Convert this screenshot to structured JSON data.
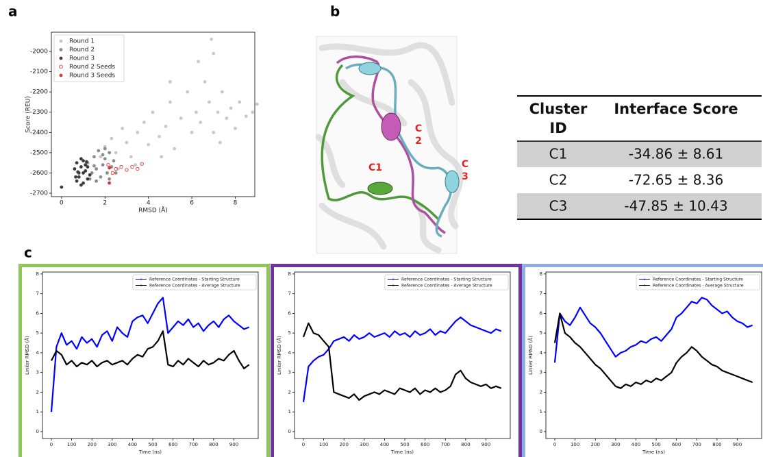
{
  "panel_labels": [
    "a",
    "b",
    "c"
  ],
  "chart_data": [
    {
      "type": "scatter",
      "xlabel": "RMSD (Å)",
      "ylabel": "Score (REU)",
      "xlim": [
        -0.47,
        8.9
      ],
      "ylim": [
        -2717,
        -1905
      ],
      "xticks": [
        0,
        2,
        4,
        6,
        8
      ],
      "yticks": [
        -2700,
        -2600,
        -2500,
        -2400,
        -2300,
        -2200,
        -2100,
        -2000
      ],
      "legend": "upper left",
      "series": [
        {
          "name": "Round 1",
          "color": "#c8c8c8",
          "marker": "filled",
          "x": [
            2.0,
            2.3,
            2.5,
            2.8,
            3.0,
            3.2,
            3.5,
            3.8,
            4.0,
            4.2,
            4.5,
            4.8,
            5.0,
            5.2,
            5.5,
            5.8,
            6.0,
            6.2,
            6.4,
            6.6,
            6.8,
            7.0,
            7.2,
            7.4,
            7.6,
            7.8,
            8.0,
            8.2,
            8.5,
            8.8,
            9.0,
            6.9,
            7.0,
            4.6,
            3.4,
            2.6,
            7.3,
            5.0,
            6.3,
            1.8
          ],
          "values": [
            -2470,
            -2430,
            -2500,
            -2380,
            -2450,
            -2520,
            -2400,
            -2350,
            -2460,
            -2300,
            -2420,
            -2370,
            -2250,
            -2480,
            -2330,
            -2200,
            -2400,
            -2300,
            -2350,
            -2150,
            -2250,
            -2400,
            -2300,
            -2200,
            -2330,
            -2280,
            -2380,
            -2250,
            -2320,
            -2300,
            -2260,
            -1940,
            -2010,
            -2520,
            -2560,
            -2580,
            -2450,
            -2150,
            -2050,
            -2520
          ]
        },
        {
          "name": "Round 2",
          "color": "#8c8c8c",
          "marker": "filled",
          "x": [
            1.2,
            1.4,
            1.5,
            1.6,
            1.7,
            1.8,
            1.9,
            2.0,
            2.1,
            2.2,
            2.3,
            1.3,
            2.4,
            1.6,
            2.0,
            1.1,
            2.5,
            1.9,
            1.5,
            2.2
          ],
          "values": [
            -2550,
            -2600,
            -2520,
            -2580,
            -2490,
            -2620,
            -2560,
            -2530,
            -2600,
            -2500,
            -2570,
            -2630,
            -2540,
            -2640,
            -2480,
            -2590,
            -2600,
            -2510,
            -2565,
            -2630
          ]
        },
        {
          "name": "Round 3",
          "color": "#3c3c3c",
          "marker": "filled",
          "x": [
            0.6,
            0.7,
            0.8,
            0.9,
            1.0,
            1.1,
            1.2,
            0.7,
            0.9,
            1.0,
            1.1,
            1.3,
            0.8,
            1.2,
            0.65,
            1.0,
            0.9,
            0.0,
            1.15,
            0.75
          ],
          "values": [
            -2580,
            -2550,
            -2620,
            -2570,
            -2600,
            -2560,
            -2630,
            -2640,
            -2530,
            -2650,
            -2590,
            -2610,
            -2600,
            -2570,
            -2620,
            -2540,
            -2660,
            -2670,
            -2545,
            -2595
          ]
        },
        {
          "name": "Round 2 Seeds",
          "color": "#e03030",
          "marker": "hollow",
          "x": [
            2.15,
            2.5,
            2.75,
            3.0,
            3.25,
            3.5,
            3.7,
            2.35
          ],
          "values": [
            -2560,
            -2580,
            -2570,
            -2585,
            -2570,
            -2580,
            -2555,
            -2600
          ]
        },
        {
          "name": "Round 3 Seeds",
          "color": "#e03030",
          "marker": "filled",
          "x": [
            2.2,
            2.2
          ],
          "values": [
            -2575,
            -2650
          ]
        }
      ]
    },
    {
      "type": "line",
      "frame_color": "#8dc75a",
      "xlabel": "Time (ns)",
      "ylabel": "Linker RMSD (Å)",
      "xlim": [
        -44,
        1020
      ],
      "ylim": [
        -0.35,
        8.1
      ],
      "xticks": [
        0,
        100,
        200,
        300,
        400,
        500,
        600,
        700,
        800,
        900
      ],
      "yticks": [
        0,
        1,
        2,
        3,
        4,
        5,
        6,
        7,
        8
      ],
      "legend": "upper right",
      "x": [
        0,
        25,
        50,
        75,
        100,
        125,
        150,
        175,
        200,
        225,
        250,
        275,
        300,
        325,
        350,
        375,
        400,
        425,
        450,
        475,
        500,
        525,
        550,
        575,
        600,
        625,
        650,
        675,
        700,
        725,
        750,
        775,
        800,
        825,
        850,
        875,
        900,
        925,
        950,
        975
      ],
      "series": [
        {
          "name": "Reference Coordinates - Starting Structure",
          "color": "#0000ff",
          "values": [
            1.0,
            4.3,
            5.0,
            4.4,
            4.6,
            4.2,
            4.8,
            4.5,
            4.7,
            4.3,
            4.9,
            5.1,
            4.6,
            5.3,
            5.0,
            4.8,
            5.6,
            5.8,
            5.9,
            5.5,
            6.0,
            6.5,
            6.8,
            5.0,
            5.3,
            5.6,
            5.4,
            5.7,
            5.3,
            5.5,
            5.1,
            5.4,
            5.6,
            5.3,
            5.7,
            5.9,
            5.6,
            5.4,
            5.2,
            5.3
          ]
        },
        {
          "name": "Reference Coordinates - Average Structure",
          "color": "#000000",
          "values": [
            3.6,
            4.1,
            3.9,
            3.4,
            3.6,
            3.3,
            3.5,
            3.4,
            3.6,
            3.3,
            3.5,
            3.6,
            3.4,
            3.5,
            3.6,
            3.4,
            3.7,
            3.9,
            3.8,
            4.2,
            4.3,
            4.6,
            5.1,
            3.4,
            3.3,
            3.6,
            3.4,
            3.7,
            3.5,
            3.3,
            3.6,
            3.4,
            3.5,
            3.7,
            3.6,
            3.9,
            4.1,
            3.6,
            3.2,
            3.4
          ]
        }
      ]
    },
    {
      "type": "line",
      "frame_color": "#7030a0",
      "xlabel": "Time (ns)",
      "ylabel": "Linker RMSD (Å)",
      "xlim": [
        -44,
        1020
      ],
      "ylim": [
        -0.35,
        8.1
      ],
      "xticks": [
        0,
        100,
        200,
        300,
        400,
        500,
        600,
        700,
        800,
        900
      ],
      "yticks": [
        0,
        1,
        2,
        3,
        4,
        5,
        6,
        7,
        8
      ],
      "legend": "upper right",
      "x": [
        0,
        25,
        50,
        75,
        100,
        125,
        150,
        175,
        200,
        225,
        250,
        275,
        300,
        325,
        350,
        375,
        400,
        425,
        450,
        475,
        500,
        525,
        550,
        575,
        600,
        625,
        650,
        675,
        700,
        725,
        750,
        775,
        800,
        825,
        850,
        875,
        900,
        925,
        950,
        975
      ],
      "series": [
        {
          "name": "Reference Coordinates - Starting Structure",
          "color": "#0000ff",
          "values": [
            1.5,
            3.3,
            3.6,
            3.8,
            3.9,
            4.2,
            4.6,
            4.7,
            4.8,
            4.6,
            4.9,
            4.7,
            4.8,
            5.0,
            4.8,
            4.9,
            5.0,
            4.8,
            5.1,
            4.9,
            5.0,
            4.8,
            5.1,
            4.9,
            5.0,
            5.2,
            4.9,
            5.1,
            5.0,
            5.3,
            5.6,
            5.8,
            5.6,
            5.4,
            5.3,
            5.2,
            5.1,
            5.0,
            5.2,
            5.1
          ]
        },
        {
          "name": "Reference Coordinates - Average Structure",
          "color": "#000000",
          "values": [
            4.8,
            5.5,
            5.0,
            4.9,
            4.6,
            4.3,
            2.0,
            1.9,
            1.8,
            1.7,
            1.9,
            1.6,
            1.8,
            1.9,
            2.0,
            1.9,
            2.1,
            2.0,
            1.9,
            2.2,
            2.1,
            2.0,
            2.2,
            1.9,
            2.1,
            2.0,
            2.2,
            2.0,
            2.1,
            2.3,
            2.9,
            3.1,
            2.7,
            2.5,
            2.4,
            2.3,
            2.4,
            2.2,
            2.3,
            2.2
          ]
        }
      ]
    },
    {
      "type": "line",
      "frame_color": "#8fb0de",
      "xlabel": "Time (ns)",
      "ylabel": "Linker RMSD (Å)",
      "xlim": [
        -44,
        1020
      ],
      "ylim": [
        -0.35,
        8.1
      ],
      "xticks": [
        0,
        100,
        200,
        300,
        400,
        500,
        600,
        700,
        800,
        900
      ],
      "yticks": [
        0,
        1,
        2,
        3,
        4,
        5,
        6,
        7,
        8
      ],
      "legend": "upper right",
      "x": [
        0,
        25,
        50,
        75,
        100,
        125,
        150,
        175,
        200,
        225,
        250,
        275,
        300,
        325,
        350,
        375,
        400,
        425,
        450,
        475,
        500,
        525,
        550,
        575,
        600,
        625,
        650,
        675,
        700,
        725,
        750,
        775,
        800,
        825,
        850,
        875,
        900,
        925,
        950,
        975
      ],
      "series": [
        {
          "name": "Reference Coordinates - Starting Structure",
          "color": "#0000ff",
          "values": [
            3.5,
            6.0,
            5.6,
            5.4,
            5.8,
            6.3,
            5.9,
            5.5,
            5.3,
            5.0,
            4.6,
            4.2,
            3.8,
            4.0,
            4.1,
            4.3,
            4.4,
            4.6,
            4.5,
            4.7,
            4.8,
            4.6,
            4.9,
            5.2,
            5.8,
            6.0,
            6.3,
            6.6,
            6.5,
            6.8,
            6.7,
            6.4,
            6.2,
            6.0,
            6.1,
            5.8,
            5.6,
            5.5,
            5.3,
            5.4
          ]
        },
        {
          "name": "Reference Coordinates - Average Structure",
          "color": "#000000",
          "values": [
            4.5,
            6.0,
            5.0,
            4.8,
            4.5,
            4.3,
            4.0,
            3.7,
            3.4,
            3.2,
            2.9,
            2.6,
            2.3,
            2.2,
            2.4,
            2.3,
            2.5,
            2.4,
            2.6,
            2.5,
            2.7,
            2.6,
            2.8,
            3.0,
            3.5,
            3.8,
            4.0,
            4.3,
            4.1,
            3.8,
            3.6,
            3.4,
            3.3,
            3.1,
            3.0,
            2.9,
            2.8,
            2.7,
            2.6,
            2.5
          ]
        }
      ]
    }
  ],
  "structure_labels": {
    "c1": "C1",
    "c2_lines": [
      "C",
      "2"
    ],
    "c3_lines": [
      "C",
      "3"
    ]
  },
  "table": {
    "header": {
      "col1_lines": [
        "Cluster",
        "ID"
      ],
      "col2": "Interface Score"
    },
    "rows": [
      [
        "C1",
        "-34.86 ± 8.61"
      ],
      [
        "C2",
        "-72.65 ± 8.36"
      ],
      [
        "C3",
        "-47.85 ± 10.43"
      ]
    ]
  }
}
